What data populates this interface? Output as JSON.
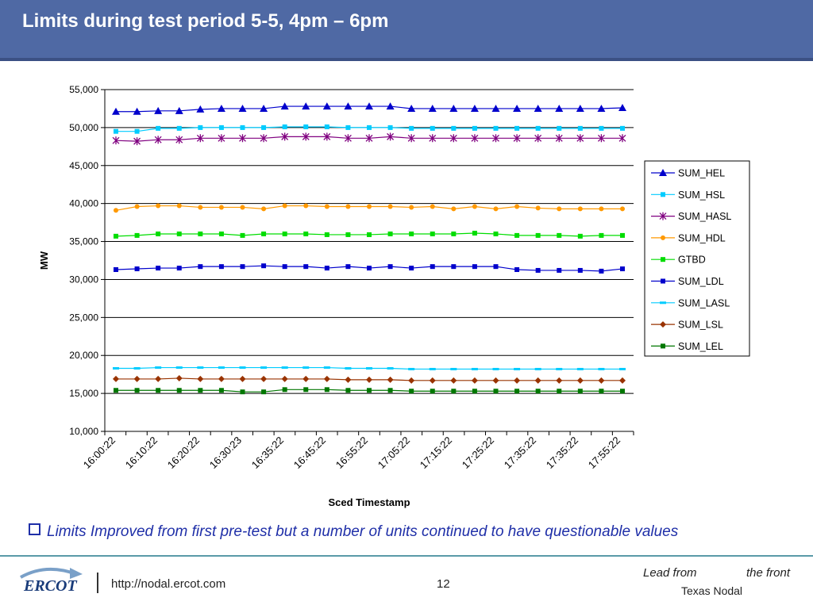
{
  "slide": {
    "title": "Limits during test period 5-5, 4pm – 6pm",
    "bullet": "Limits Improved from first pre-test but a number of units continued to have questionable values",
    "footer_url": "http://nodal.ercot.com",
    "page_number": "12",
    "tagline_1": "Lead from",
    "tagline_2": "the front",
    "tagline_3": "Texas Nodal",
    "logo_text": "ERCOT"
  },
  "colors": {
    "title_bar": "#4f69a4",
    "bullet_text": "#1f2fa8",
    "footer_rule": "#5a9aa8"
  },
  "chart_data": {
    "type": "line",
    "title": "",
    "xlabel": "Sced Timestamp",
    "ylabel": "MW",
    "ylim": [
      10000,
      55000
    ],
    "yticks": [
      "10,000",
      "15,000",
      "20,000",
      "25,000",
      "30,000",
      "35,000",
      "40,000",
      "45,000",
      "50,000",
      "55,000"
    ],
    "xtick_labels": [
      "16:00:22",
      "16:10:22",
      "16:20:22",
      "16:30:23",
      "16:35:22",
      "16:45:22",
      "16:55:22",
      "17:05:22",
      "17:15:22",
      "17:25:22",
      "17:35:22",
      "17:35:22",
      "17:55:22"
    ],
    "grid": "horizontal",
    "legend_position": "right",
    "series": [
      {
        "name": "SUM_HEL",
        "color": "#0000cc",
        "marker": "triangle",
        "values": [
          52100,
          52100,
          52200,
          52200,
          52400,
          52500,
          52500,
          52500,
          52800,
          52800,
          52800,
          52800,
          52800,
          52800,
          52500,
          52500,
          52500,
          52500,
          52500,
          52500,
          52500,
          52500,
          52500,
          52500,
          52600
        ]
      },
      {
        "name": "SUM_HSL",
        "color": "#00ccff",
        "marker": "square",
        "values": [
          49500,
          49500,
          49900,
          49900,
          50000,
          50000,
          50000,
          50000,
          50100,
          50100,
          50100,
          50000,
          50000,
          50000,
          49900,
          49900,
          49900,
          49900,
          49900,
          49900,
          49900,
          49900,
          49900,
          49900,
          49900
        ]
      },
      {
        "name": "SUM_HASL",
        "color": "#800080",
        "marker": "star",
        "values": [
          48300,
          48200,
          48400,
          48400,
          48600,
          48600,
          48600,
          48600,
          48800,
          48800,
          48800,
          48600,
          48600,
          48800,
          48600,
          48600,
          48600,
          48600,
          48600,
          48600,
          48600,
          48600,
          48600,
          48600,
          48600
        ]
      },
      {
        "name": "SUM_HDL",
        "color": "#ff9900",
        "marker": "circle",
        "values": [
          39100,
          39600,
          39700,
          39700,
          39500,
          39500,
          39500,
          39300,
          39700,
          39700,
          39600,
          39600,
          39600,
          39600,
          39500,
          39600,
          39300,
          39600,
          39300,
          39600,
          39400,
          39300,
          39300,
          39300,
          39300
        ]
      },
      {
        "name": "GTBD",
        "color": "#00dd00",
        "marker": "square",
        "values": [
          35700,
          35800,
          36000,
          36000,
          36000,
          36000,
          35800,
          36000,
          36000,
          36000,
          35900,
          35900,
          35900,
          36000,
          36000,
          36000,
          36000,
          36100,
          36000,
          35800,
          35800,
          35800,
          35700,
          35800,
          35800
        ]
      },
      {
        "name": "SUM_LDL",
        "color": "#0000cc",
        "marker": "square",
        "values": [
          31300,
          31400,
          31500,
          31500,
          31700,
          31700,
          31700,
          31800,
          31700,
          31700,
          31500,
          31700,
          31500,
          31700,
          31500,
          31700,
          31700,
          31700,
          31700,
          31300,
          31200,
          31200,
          31200,
          31100,
          31400
        ]
      },
      {
        "name": "SUM_LASL",
        "color": "#00ccff",
        "marker": "dash",
        "values": [
          18300,
          18300,
          18400,
          18400,
          18400,
          18400,
          18400,
          18400,
          18400,
          18400,
          18400,
          18300,
          18300,
          18300,
          18200,
          18200,
          18200,
          18200,
          18200,
          18200,
          18200,
          18200,
          18200,
          18200,
          18200
        ]
      },
      {
        "name": "SUM_LSL",
        "color": "#993300",
        "marker": "diamond",
        "values": [
          16900,
          16900,
          16900,
          17000,
          16900,
          16900,
          16900,
          16900,
          16900,
          16900,
          16900,
          16800,
          16800,
          16800,
          16700,
          16700,
          16700,
          16700,
          16700,
          16700,
          16700,
          16700,
          16700,
          16700,
          16700
        ]
      },
      {
        "name": "SUM_LEL",
        "color": "#007700",
        "marker": "square",
        "values": [
          15400,
          15400,
          15400,
          15400,
          15400,
          15400,
          15200,
          15200,
          15500,
          15500,
          15500,
          15400,
          15400,
          15400,
          15300,
          15300,
          15300,
          15300,
          15300,
          15300,
          15300,
          15300,
          15300,
          15300,
          15300
        ]
      }
    ]
  }
}
